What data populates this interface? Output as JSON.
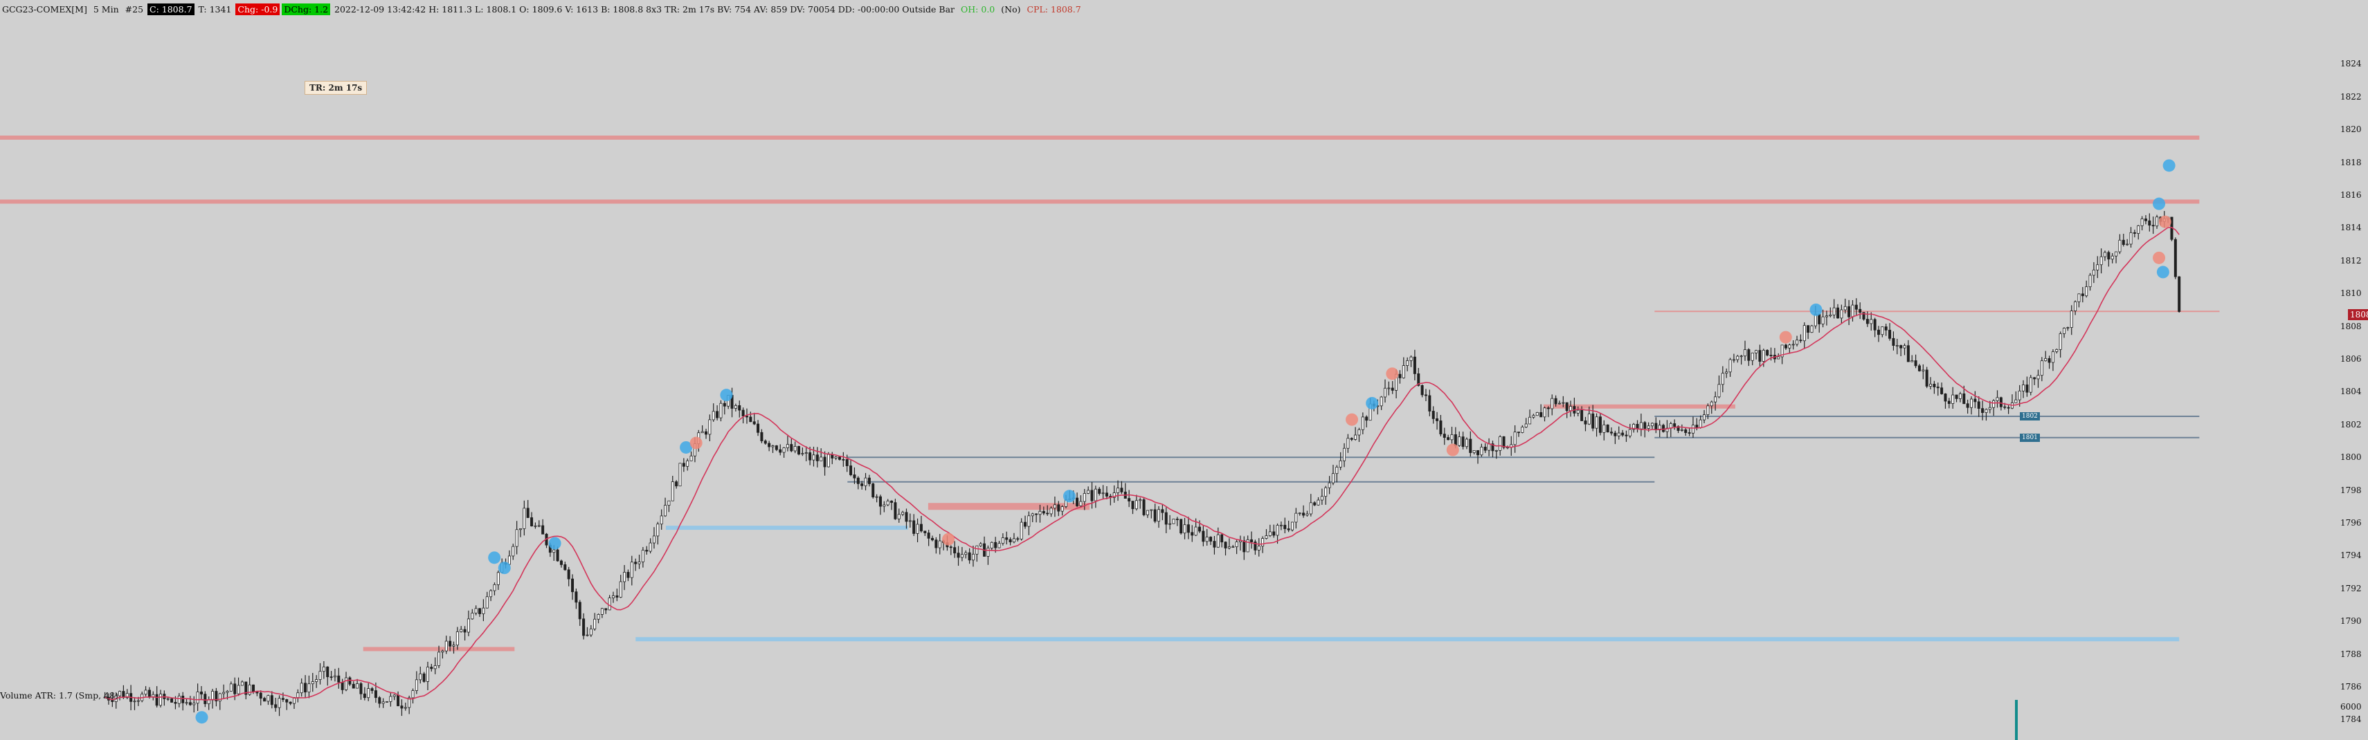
{
  "header": {
    "symbol": "GCG23-COMEX[M]",
    "timeframe": "5 Min",
    "bar_count": "#25",
    "close": "C: 1808.7",
    "ticks": "T: 1341",
    "chg": "Chg: -0.9",
    "dchg": "DChg: 1.2",
    "ohlc": "2022-12-09 13:42:42 H: 1811.3 L: 1808.1 O: 1809.6 V: 1613 B: 1808.8 8x3 TR: 2m 17s BV: 754 AV: 859 DV: 70054 DD: -00:00:00 Outside Bar",
    "oh": "OH: 0.0",
    "no": "(No)",
    "cpl": "CPL: 1808.7"
  },
  "tr_label": "TR: 2m 17s",
  "volume_label": "Volume  ATR: 1.7  (Smp, 48)",
  "colors": {
    "background": "#d0d0d0",
    "candle": "#202020",
    "ma": "#d3365a",
    "resistance": "#e48c8c",
    "support": "#8ec6ea",
    "thin_line": "#556e88",
    "bubble_blue": "#3ea9e8",
    "bubble_red": "#ef8a7a",
    "volume_bar": "#128c8c"
  },
  "chart_data": {
    "type": "candlestick",
    "title": "",
    "xlabel": "",
    "ylabel": "",
    "ylim": [
      1784,
      1826
    ],
    "y_ticks": [
      "1824",
      "1822",
      "1820",
      "1818",
      "1816",
      "1814",
      "1812",
      "1810",
      "1808",
      "1806",
      "1804",
      "1802",
      "1800",
      "1798",
      "1796",
      "1794",
      "1792",
      "1790",
      "1788",
      "1786",
      "1784"
    ],
    "current_price": "1808.7",
    "axis_tags": [
      "1802",
      "1801"
    ],
    "volume_axis_label": "6000",
    "anchors": [
      [
        0.0,
        1785.0
      ],
      [
        0.02,
        1786.0
      ],
      [
        0.04,
        1785.0
      ],
      [
        0.06,
        1785.6
      ],
      [
        0.09,
        1785.0
      ],
      [
        0.12,
        1786.0
      ],
      [
        0.14,
        1785.0
      ],
      [
        0.16,
        1786.8
      ],
      [
        0.18,
        1785.6
      ],
      [
        0.2,
        1785.0
      ],
      [
        0.215,
        1787.5
      ],
      [
        0.24,
        1791.0
      ],
      [
        0.26,
        1796.5
      ],
      [
        0.28,
        1793.5
      ],
      [
        0.29,
        1789.0
      ],
      [
        0.32,
        1794.5
      ],
      [
        0.34,
        1800.0
      ],
      [
        0.36,
        1803.5
      ],
      [
        0.38,
        1801.0
      ],
      [
        0.4,
        1800.0
      ],
      [
        0.42,
        1799.5
      ],
      [
        0.44,
        1797.0
      ],
      [
        0.46,
        1795.0
      ],
      [
        0.48,
        1794.0
      ],
      [
        0.5,
        1795.0
      ],
      [
        0.52,
        1797.0
      ],
      [
        0.55,
        1798.0
      ],
      [
        0.58,
        1796.0
      ],
      [
        0.6,
        1795.0
      ],
      [
        0.62,
        1794.5
      ],
      [
        0.64,
        1796.0
      ],
      [
        0.66,
        1798.5
      ],
      [
        0.67,
        1801.5
      ],
      [
        0.7,
        1806.0
      ],
      [
        0.71,
        1802.0
      ],
      [
        0.73,
        1800.5
      ],
      [
        0.75,
        1801.0
      ],
      [
        0.77,
        1803.5
      ],
      [
        0.8,
        1801.5
      ],
      [
        0.82,
        1802.0
      ],
      [
        0.84,
        1801.5
      ],
      [
        0.86,
        1806.5
      ],
      [
        0.88,
        1806.0
      ],
      [
        0.9,
        1808.5
      ],
      [
        0.92,
        1809.0
      ],
      [
        0.94,
        1807.0
      ],
      [
        0.96,
        1804.0
      ],
      [
        0.98,
        1803.0
      ],
      [
        1.0,
        1803.5
      ],
      [
        1.02,
        1807.0
      ],
      [
        1.04,
        1812.0
      ],
      [
        1.06,
        1814.0
      ],
      [
        1.075,
        1815.0
      ],
      [
        1.08,
        1808.7
      ]
    ],
    "levels": [
      {
        "price": 1819.5,
        "start": 0.0,
        "end": 1.09,
        "kind": "resistance",
        "weight": 6
      },
      {
        "price": 1815.6,
        "start": 0.0,
        "end": 1.09,
        "kind": "resistance",
        "weight": 6
      },
      {
        "price": 1808.9,
        "start": 0.82,
        "end": 1.1,
        "kind": "resistance",
        "weight": 2
      },
      {
        "price": 1803.1,
        "start": 0.765,
        "end": 0.86,
        "kind": "resistance",
        "weight": 6
      },
      {
        "price": 1802.5,
        "start": 0.82,
        "end": 1.09,
        "kind": "thin",
        "weight": 2
      },
      {
        "price": 1801.2,
        "start": 0.82,
        "end": 1.09,
        "kind": "thin",
        "weight": 2
      },
      {
        "price": 1800.0,
        "start": 0.42,
        "end": 0.82,
        "kind": "thin",
        "weight": 2
      },
      {
        "price": 1798.5,
        "start": 0.42,
        "end": 0.82,
        "kind": "thin",
        "weight": 2
      },
      {
        "price": 1797.0,
        "start": 0.46,
        "end": 0.54,
        "kind": "resistance",
        "weight": 10
      },
      {
        "price": 1795.7,
        "start": 0.33,
        "end": 0.45,
        "kind": "support",
        "weight": 6
      },
      {
        "price": 1788.9,
        "start": 0.315,
        "end": 1.08,
        "kind": "support",
        "weight": 6
      },
      {
        "price": 1788.3,
        "start": 0.18,
        "end": 0.255,
        "kind": "resistance",
        "weight": 6
      }
    ]
  }
}
